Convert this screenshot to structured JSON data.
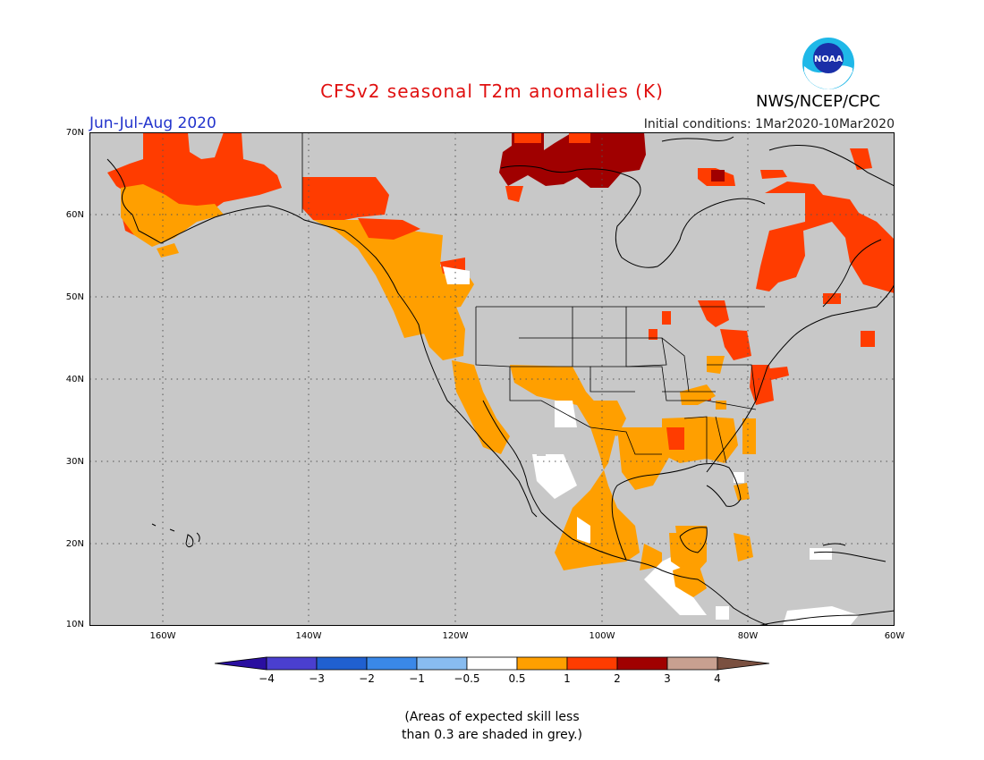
{
  "title": "CFSv2 seasonal T2m anomalies (K)",
  "season": "Jun-Jul-Aug 2020",
  "initial_conditions": "Initial conditions: 1Mar2020-10Mar2020",
  "agency": "NWS/NCEP/CPC",
  "logo_text": "NOAA",
  "map": {
    "lat_labels": [
      "70N",
      "60N",
      "50N",
      "40N",
      "30N",
      "20N",
      "10N"
    ],
    "lon_labels": [
      "160W",
      "140W",
      "120W",
      "100W",
      "80W",
      "60W"
    ],
    "lat_range": [
      10,
      70
    ],
    "lon_range": [
      -170,
      -60
    ],
    "grid": "dotted",
    "background_color": "#c8c8c8"
  },
  "colorbar": {
    "labels": [
      "−4",
      "−3",
      "−2",
      "−1",
      "−0.5",
      "0.5",
      "1",
      "2",
      "3",
      "4"
    ],
    "colors": [
      "#2a0fa0",
      "#4a3fcf",
      "#2060d0",
      "#3a88e8",
      "#88bcf0",
      "#ffffff",
      "#ff9f00",
      "#ff3c00",
      "#a00000",
      "#c8a090",
      "#7a5040"
    ]
  },
  "legend_colors": {
    "grey": "#c8c8c8",
    "near_zero": "#ffffff",
    "c05_1": "#ff9f00",
    "c1_2": "#ff3c00",
    "c2_3": "#a00000"
  },
  "note_line1": "(Areas of expected skill less",
  "note_line2": "than 0.3 are shaded in grey.)"
}
